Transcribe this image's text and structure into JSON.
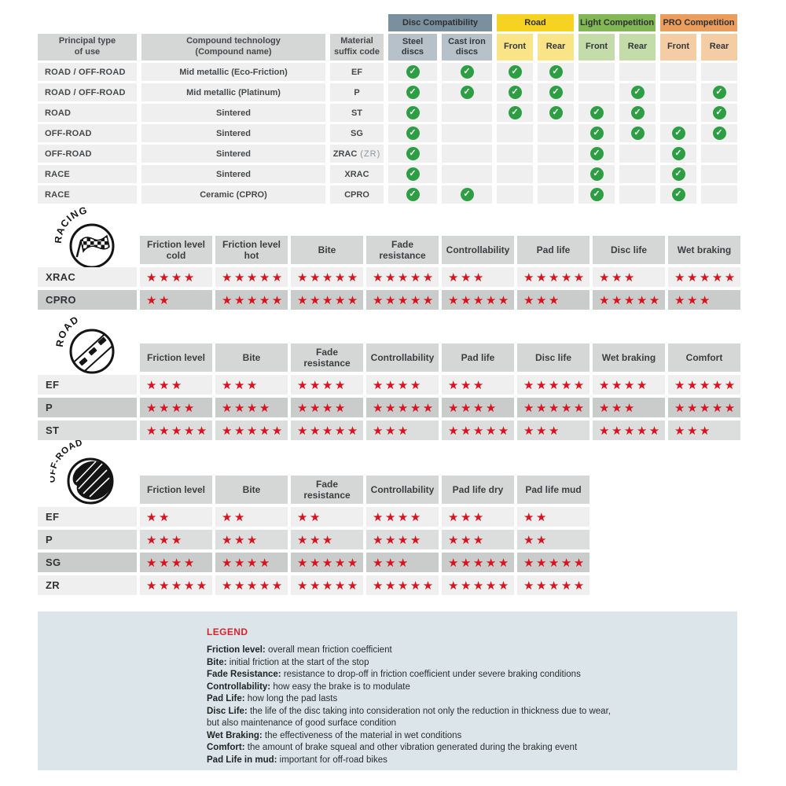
{
  "icons": {
    "check_glyph": "✓",
    "star_glyph": "★"
  },
  "colors": {
    "check_green": "#2e9e45",
    "star_red": "#d8141f",
    "header_gray": "#d4d7d6",
    "row_light": "#efefef",
    "row_medium": "#dcdddd",
    "row_dark": "#c9cccb",
    "legend_bg": "#dce5ea",
    "legend_title_red": "#d8232a"
  },
  "compat_table": {
    "headers": {
      "principal": "Principal type\nof use",
      "compound": "Compound technology\n(Compound name)",
      "material": "Material\nsuffix code"
    },
    "groups": [
      {
        "label": "Disc Compatibility",
        "color": "#7b909f",
        "subcolor": "#b7c1c9",
        "cols": [
          "Steel\ndiscs",
          "Cast iron\ndiscs"
        ]
      },
      {
        "label": "Road",
        "color": "#f6d323",
        "subcolor": "#f9e588",
        "cols": [
          "Front",
          "Rear"
        ]
      },
      {
        "label": "Light Competition",
        "color": "#82b755",
        "subcolor": "#c3dcaa",
        "cols": [
          "Front",
          "Rear"
        ]
      },
      {
        "label": "PRO Competition",
        "color": "#eb9d5e",
        "subcolor": "#f5cda4",
        "cols": [
          "Front",
          "Rear"
        ]
      }
    ],
    "rows": [
      {
        "use": "ROAD / OFF-ROAD",
        "compound": "Mid metallic (Eco-Friction)",
        "code": "EF",
        "code_note": "",
        "checks": [
          1,
          1,
          1,
          1,
          0,
          0,
          0,
          0
        ]
      },
      {
        "use": "ROAD / OFF-ROAD",
        "compound": "Mid metallic (Platinum)",
        "code": "P",
        "code_note": "",
        "checks": [
          1,
          1,
          1,
          1,
          0,
          1,
          0,
          1
        ]
      },
      {
        "use": "ROAD",
        "compound": "Sintered",
        "code": "ST",
        "code_note": "",
        "checks": [
          1,
          0,
          1,
          1,
          1,
          1,
          0,
          1
        ]
      },
      {
        "use": "OFF-ROAD",
        "compound": "Sintered",
        "code": "SG",
        "code_note": "",
        "checks": [
          1,
          0,
          0,
          0,
          1,
          1,
          1,
          1
        ]
      },
      {
        "use": "OFF-ROAD",
        "compound": "Sintered",
        "code": "ZRAC",
        "code_note": "(ZR)",
        "checks": [
          1,
          0,
          0,
          0,
          1,
          0,
          1,
          0
        ]
      },
      {
        "use": "RACE",
        "compound": "Sintered",
        "code": "XRAC",
        "code_note": "",
        "checks": [
          1,
          0,
          0,
          0,
          1,
          0,
          1,
          0
        ]
      },
      {
        "use": "RACE",
        "compound": "Ceramic (CPRO)",
        "code": "CPRO",
        "code_note": "",
        "checks": [
          1,
          1,
          0,
          0,
          1,
          0,
          1,
          0
        ]
      }
    ]
  },
  "sections": [
    {
      "id": "racing",
      "badge": "RACING",
      "columns": [
        "Friction level cold",
        "Friction level hot",
        "Bite",
        "Fade resistance",
        "Controllability",
        "Pad life",
        "Disc life",
        "Wet braking"
      ],
      "rows": [
        {
          "code": "XRAC",
          "tone": "light",
          "stars": [
            4,
            5,
            5,
            5,
            3,
            5,
            3,
            5
          ]
        },
        {
          "code": "CPRO",
          "tone": "dark",
          "stars": [
            2,
            5,
            5,
            5,
            5,
            3,
            5,
            3
          ]
        }
      ]
    },
    {
      "id": "road",
      "badge": "ROAD",
      "columns": [
        "Friction level",
        "Bite",
        "Fade resistance",
        "Controllability",
        "Pad life",
        "Disc life",
        "Wet braking",
        "Comfort"
      ],
      "rows": [
        {
          "code": "EF",
          "tone": "light",
          "stars": [
            3,
            3,
            4,
            4,
            3,
            5,
            4,
            5
          ]
        },
        {
          "code": "P",
          "tone": "dark",
          "stars": [
            4,
            4,
            4,
            5,
            4,
            5,
            3,
            5
          ]
        },
        {
          "code": "ST",
          "tone": "medium",
          "stars": [
            5,
            5,
            5,
            3,
            5,
            3,
            5,
            3
          ]
        }
      ]
    },
    {
      "id": "offroad",
      "badge": "OFF-ROAD",
      "columns": [
        "Friction level",
        "Bite",
        "Fade resistance",
        "Controllability",
        "Pad life dry",
        "Pad life mud"
      ],
      "rows": [
        {
          "code": "EF",
          "tone": "light",
          "stars": [
            2,
            2,
            2,
            4,
            3,
            2
          ]
        },
        {
          "code": "P",
          "tone": "medium",
          "stars": [
            3,
            3,
            3,
            4,
            3,
            2
          ]
        },
        {
          "code": "SG",
          "tone": "dark",
          "stars": [
            4,
            4,
            5,
            3,
            5,
            5
          ]
        },
        {
          "code": "ZR",
          "tone": "light",
          "stars": [
            5,
            5,
            5,
            5,
            5,
            5
          ]
        }
      ]
    }
  ],
  "legend": {
    "title": "LEGEND",
    "items": [
      {
        "term": "Friction level:",
        "desc": "overall mean friction coefficient"
      },
      {
        "term": "Bite:",
        "desc": "initial friction at the start of the stop"
      },
      {
        "term": "Fade Resistance:",
        "desc": "resistance to drop-off in friction coefficient under severe braking conditions"
      },
      {
        "term": "Controllability:",
        "desc": "how easy the brake is to modulate"
      },
      {
        "term": "Pad Life:",
        "desc": "how long the pad lasts"
      },
      {
        "term": "Disc Life:",
        "desc": "the life of the disc taking into consideration not only the reduction in thickness due to wear,"
      },
      {
        "term": "",
        "desc": "but also maintenance of good surface condition"
      },
      {
        "term": "Wet Braking:",
        "desc": "the effectiveness of the material in wet conditions"
      },
      {
        "term": "Comfort:",
        "desc": "the amount of brake squeal and other vibration generated during the braking event"
      },
      {
        "term": "Pad Life in mud:",
        "desc": "important for off-road bikes"
      }
    ]
  }
}
